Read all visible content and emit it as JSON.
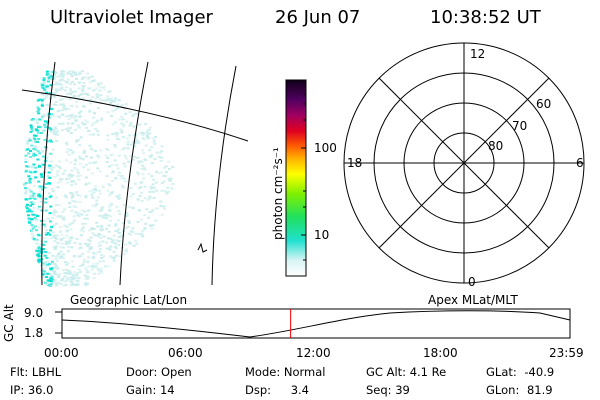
{
  "header": {
    "instrument": "Ultraviolet Imager",
    "date": "26 Jun 07",
    "time": "10:38:52 UT"
  },
  "colorbar": {
    "unit_label": "photon cm⁻²s⁻¹",
    "ticks": [
      "100",
      "10"
    ]
  },
  "polar_plot": {
    "mlt_labels": {
      "top": "12",
      "bottom": "0",
      "left": "18",
      "right": "6"
    },
    "lat_labels": [
      "80",
      "70",
      "60"
    ]
  },
  "orbit_panel": {
    "left_caption": "Geographic Lat/Lon",
    "right_caption": "Apex MLat/MLT",
    "y_axis_label": "GC Alt",
    "y_ticks": [
      "9.0",
      "1.8"
    ],
    "x_ticks": [
      "00:00",
      "06:00",
      "12:00",
      "18:00",
      "23:59"
    ],
    "current_time_fraction": 0.45
  },
  "status": {
    "row1": [
      {
        "label": "Flt:",
        "value": "LBHL"
      },
      {
        "label": "Door:",
        "value": "Open"
      },
      {
        "label": "Mode:",
        "value": "Normal"
      },
      {
        "label": "GC Alt:",
        "value": "4.1 Re"
      },
      {
        "label": "GLat:",
        "value": "-40.9"
      }
    ],
    "row2": [
      {
        "label": "IP:",
        "value": "36.0"
      },
      {
        "label": "Gain:",
        "value": "14"
      },
      {
        "label": "Dsp:",
        "value": "3.4"
      },
      {
        "label": "Seq:",
        "value": "39"
      },
      {
        "label": "GLon:",
        "value": "81.9"
      }
    ]
  },
  "colors": {
    "emission_cyan": "#00e0d0",
    "emission_light": "#c8ecec",
    "time_marker": "#ff0000"
  }
}
